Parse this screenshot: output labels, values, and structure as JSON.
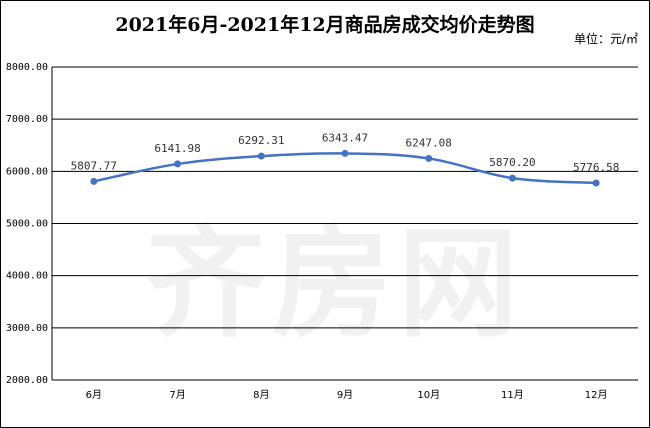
{
  "chart_data": {
    "type": "line",
    "title": "2021年6月-2021年12月商品房成交均价走势图",
    "unit_label": "单位：元/㎡",
    "categories": [
      "6月",
      "7月",
      "8月",
      "9月",
      "10月",
      "11月",
      "12月"
    ],
    "values": [
      5807.77,
      6141.98,
      6292.31,
      6343.47,
      6247.08,
      5870.2,
      5776.58
    ],
    "value_labels": [
      "5807.77",
      "6141.98",
      "6292.31",
      "6343.47",
      "6247.08",
      "5870.20",
      "5776.58"
    ],
    "y_ticks": [
      "2000.00",
      "3000.00",
      "4000.00",
      "5000.00",
      "6000.00",
      "7000.00",
      "8000.00"
    ],
    "ylim": [
      2000,
      8000
    ],
    "grid": true,
    "line_color": "#4472c4",
    "watermark": "齐房网"
  }
}
